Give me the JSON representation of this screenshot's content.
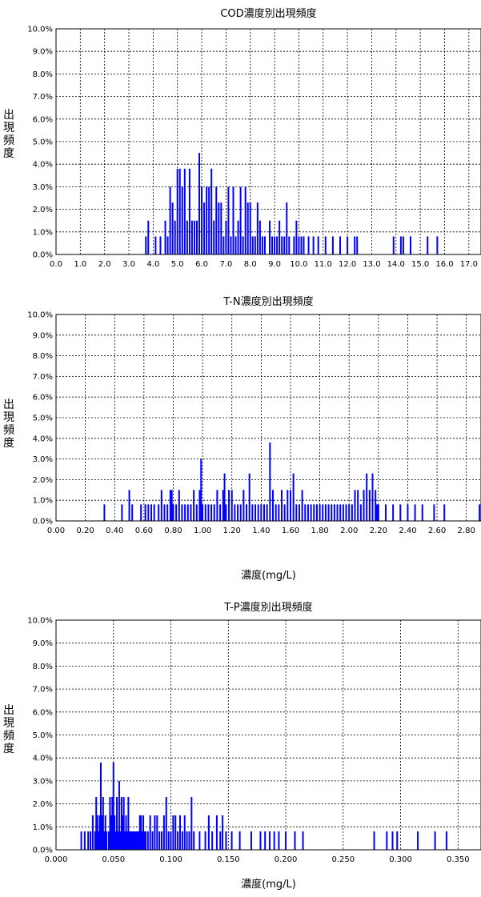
{
  "chart_data": [
    {
      "type": "bar",
      "title": "COD濃度別出現頻度",
      "ylabel": "出現頻度",
      "xlabel": "",
      "xlim": [
        0,
        17.5
      ],
      "ylim": [
        0,
        10
      ],
      "x_ticks": [
        "0.0",
        "1.0",
        "2.0",
        "3.0",
        "4.0",
        "5.0",
        "6.0",
        "7.0",
        "8.0",
        "9.0",
        "10.0",
        "11.0",
        "12.0",
        "13.0",
        "14.0",
        "15.0",
        "16.0",
        "17.0"
      ],
      "y_ticks": [
        "0.0%",
        "1.0%",
        "2.0%",
        "3.0%",
        "4.0%",
        "5.0%",
        "6.0%",
        "7.0%",
        "8.0%",
        "9.0%",
        "10.0%"
      ],
      "grid": true,
      "color": "#0000ff",
      "series": [
        {
          "x": [
            3.7,
            3.8,
            4.1,
            4.3,
            4.5,
            4.6,
            4.7,
            4.8,
            4.9,
            5.0,
            5.1,
            5.2,
            5.3,
            5.4,
            5.5,
            5.6,
            5.7,
            5.8,
            5.9,
            6.0,
            6.1,
            6.2,
            6.3,
            6.4,
            6.5,
            6.6,
            6.7,
            6.8,
            6.9,
            7.0,
            7.1,
            7.2,
            7.3,
            7.4,
            7.5,
            7.6,
            7.7,
            7.8,
            7.9,
            8.0,
            8.1,
            8.2,
            8.3,
            8.4,
            8.5,
            8.6,
            8.8,
            8.9,
            9.0,
            9.1,
            9.2,
            9.3,
            9.4,
            9.5,
            9.6,
            9.8,
            9.9,
            10.0,
            10.1,
            10.2,
            10.4,
            10.6,
            10.8,
            11.1,
            11.4,
            11.7,
            12.0,
            12.3,
            12.4,
            13.9,
            14.2,
            14.3,
            14.6,
            15.3,
            15.7
          ],
          "values": [
            0.8,
            1.5,
            0.8,
            0.8,
            1.5,
            0.8,
            3.0,
            2.3,
            1.5,
            3.8,
            3.8,
            3.0,
            3.8,
            1.5,
            3.8,
            1.5,
            1.5,
            1.5,
            4.5,
            3.0,
            2.3,
            3.0,
            3.0,
            3.8,
            1.5,
            3.0,
            2.3,
            2.3,
            0.8,
            1.5,
            3.0,
            0.8,
            3.0,
            0.8,
            1.5,
            3.0,
            0.8,
            3.0,
            2.3,
            2.3,
            0.8,
            0.8,
            2.3,
            1.5,
            0.8,
            0.8,
            1.5,
            0.8,
            0.8,
            0.8,
            1.5,
            0.8,
            0.8,
            2.3,
            0.8,
            0.8,
            1.5,
            0.8,
            0.8,
            0.8,
            0.8,
            0.8,
            0.8,
            0.8,
            0.8,
            0.8,
            0.8,
            0.8,
            0.8,
            0.8,
            0.8,
            0.8,
            0.8,
            0.8,
            0.8
          ]
        }
      ]
    },
    {
      "type": "bar",
      "title": "T-N濃度別出現頻度",
      "ylabel": "出現頻度",
      "xlabel": "濃度(mg/L)",
      "xlim": [
        0,
        2.9
      ],
      "ylim": [
        0,
        10
      ],
      "x_ticks": [
        "0.00",
        "0.20",
        "0.40",
        "0.60",
        "0.80",
        "1.00",
        "1.20",
        "1.40",
        "1.60",
        "1.80",
        "2.00",
        "2.20",
        "2.40",
        "2.60",
        "2.80"
      ],
      "y_ticks": [
        "0.0%",
        "1.0%",
        "2.0%",
        "3.0%",
        "4.0%",
        "5.0%",
        "6.0%",
        "7.0%",
        "8.0%",
        "9.0%",
        "10.0%"
      ],
      "grid": true,
      "color": "#0000ff",
      "series": [
        {
          "x": [
            0.33,
            0.45,
            0.5,
            0.52,
            0.58,
            0.61,
            0.63,
            0.65,
            0.67,
            0.7,
            0.72,
            0.74,
            0.76,
            0.78,
            0.79,
            0.8,
            0.82,
            0.84,
            0.86,
            0.88,
            0.9,
            0.92,
            0.94,
            0.96,
            0.98,
            0.99,
            1.0,
            1.02,
            1.04,
            1.06,
            1.08,
            1.1,
            1.12,
            1.14,
            1.15,
            1.16,
            1.18,
            1.2,
            1.22,
            1.24,
            1.26,
            1.28,
            1.3,
            1.32,
            1.34,
            1.36,
            1.38,
            1.4,
            1.42,
            1.44,
            1.46,
            1.48,
            1.5,
            1.52,
            1.54,
            1.56,
            1.58,
            1.6,
            1.62,
            1.64,
            1.66,
            1.68,
            1.7,
            1.72,
            1.74,
            1.76,
            1.78,
            1.8,
            1.82,
            1.84,
            1.86,
            1.88,
            1.9,
            1.92,
            1.94,
            1.96,
            1.98,
            2.0,
            2.02,
            2.04,
            2.06,
            2.08,
            2.1,
            2.12,
            2.14,
            2.16,
            2.18,
            2.19,
            2.2,
            2.25,
            2.3,
            2.35,
            2.4,
            2.45,
            2.5,
            2.58,
            2.65,
            2.89
          ],
          "values": [
            0.8,
            0.8,
            1.5,
            0.8,
            0.8,
            0.8,
            0.8,
            0.8,
            0.8,
            0.8,
            1.5,
            0.8,
            0.8,
            1.5,
            1.5,
            0.8,
            0.8,
            1.5,
            0.8,
            0.8,
            0.8,
            0.8,
            1.5,
            0.8,
            1.5,
            3.0,
            0.8,
            0.8,
            0.8,
            0.8,
            0.8,
            1.5,
            0.8,
            1.5,
            2.3,
            0.8,
            1.5,
            1.5,
            0.8,
            0.8,
            0.8,
            1.5,
            0.8,
            2.3,
            0.8,
            0.8,
            0.8,
            0.8,
            0.8,
            0.8,
            3.8,
            1.5,
            0.8,
            0.8,
            1.5,
            0.8,
            1.5,
            1.5,
            2.3,
            0.8,
            0.8,
            1.5,
            0.8,
            0.8,
            0.8,
            0.8,
            0.8,
            0.8,
            0.8,
            0.8,
            0.8,
            0.8,
            0.8,
            0.8,
            0.8,
            0.8,
            0.8,
            0.8,
            0.8,
            1.5,
            1.5,
            0.8,
            1.5,
            2.3,
            1.5,
            2.3,
            1.5,
            0.8,
            0.8,
            0.8,
            0.8,
            0.8,
            0.8,
            0.8,
            0.8,
            0.8,
            0.8,
            0.8
          ]
        }
      ]
    },
    {
      "type": "bar",
      "title": "T-P濃度別出現頻度",
      "ylabel": "出現頻度",
      "xlabel": "濃度(mg/L)",
      "xlim": [
        0,
        0.37
      ],
      "ylim": [
        0,
        10
      ],
      "x_ticks": [
        "0.000",
        "0.050",
        "0.100",
        "0.150",
        "0.200",
        "0.250",
        "0.300",
        "0.350"
      ],
      "y_ticks": [
        "0.0%",
        "1.0%",
        "2.0%",
        "3.0%",
        "4.0%",
        "5.0%",
        "6.0%",
        "7.0%",
        "8.0%",
        "9.0%",
        "10.0%"
      ],
      "grid": true,
      "color": "#0000ff",
      "series": [
        {
          "x": [
            0.022,
            0.025,
            0.028,
            0.03,
            0.032,
            0.034,
            0.035,
            0.036,
            0.037,
            0.038,
            0.039,
            0.04,
            0.041,
            0.042,
            0.043,
            0.044,
            0.046,
            0.047,
            0.048,
            0.049,
            0.05,
            0.051,
            0.052,
            0.053,
            0.054,
            0.055,
            0.056,
            0.057,
            0.058,
            0.059,
            0.06,
            0.061,
            0.062,
            0.063,
            0.064,
            0.065,
            0.066,
            0.067,
            0.068,
            0.069,
            0.07,
            0.071,
            0.072,
            0.073,
            0.074,
            0.075,
            0.076,
            0.077,
            0.078,
            0.08,
            0.082,
            0.084,
            0.086,
            0.088,
            0.09,
            0.092,
            0.094,
            0.096,
            0.098,
            0.1,
            0.102,
            0.104,
            0.106,
            0.108,
            0.11,
            0.112,
            0.114,
            0.116,
            0.118,
            0.12,
            0.125,
            0.13,
            0.133,
            0.136,
            0.14,
            0.143,
            0.145,
            0.148,
            0.153,
            0.16,
            0.17,
            0.178,
            0.182,
            0.186,
            0.19,
            0.194,
            0.2,
            0.208,
            0.215,
            0.277,
            0.288,
            0.293,
            0.297,
            0.315,
            0.33,
            0.34
          ],
          "values": [
            0.8,
            0.8,
            0.8,
            0.8,
            1.5,
            0.8,
            2.3,
            1.5,
            0.8,
            1.5,
            3.8,
            1.5,
            2.3,
            0.8,
            1.5,
            0.8,
            0.8,
            2.3,
            1.5,
            2.3,
            3.8,
            1.5,
            0.8,
            2.3,
            0.8,
            3.0,
            0.8,
            2.3,
            1.5,
            2.3,
            0.8,
            1.5,
            0.8,
            2.3,
            0.8,
            0.8,
            0.8,
            0.8,
            0.8,
            0.8,
            0.8,
            0.8,
            0.8,
            1.5,
            1.5,
            0.8,
            1.5,
            0.8,
            0.8,
            0.8,
            1.5,
            0.8,
            1.5,
            1.5,
            0.8,
            0.8,
            1.5,
            2.3,
            0.8,
            0.8,
            1.5,
            1.5,
            0.8,
            1.5,
            0.8,
            1.5,
            0.8,
            0.8,
            2.3,
            0.8,
            0.8,
            0.8,
            1.5,
            0.8,
            1.5,
            0.8,
            1.5,
            0.8,
            0.8,
            0.8,
            0.8,
            0.8,
            0.8,
            0.8,
            0.8,
            0.8,
            0.8,
            0.8,
            0.8,
            0.8,
            0.8,
            0.8,
            0.8,
            0.8,
            0.8,
            0.8
          ]
        }
      ]
    }
  ]
}
